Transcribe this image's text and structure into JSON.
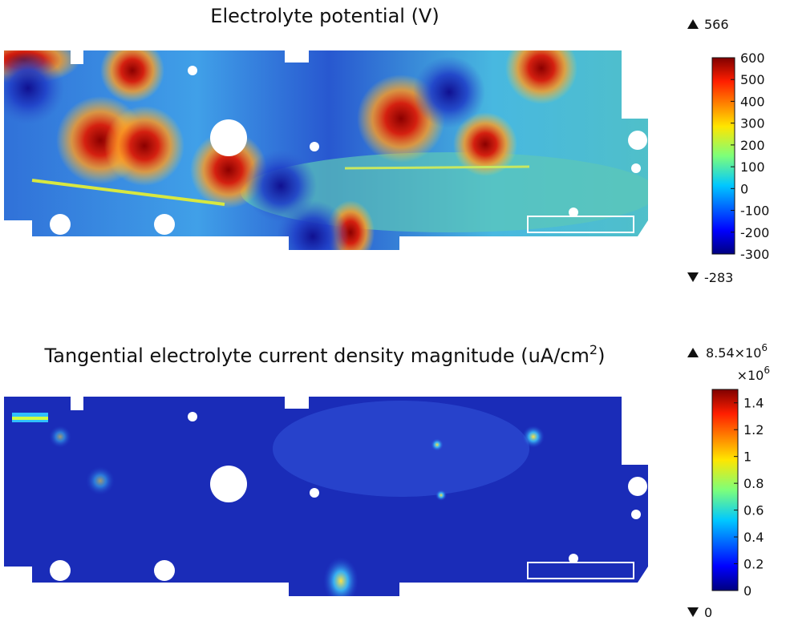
{
  "plots": [
    {
      "title": "Electrolyte potential (V)",
      "max": 566,
      "min": -283,
      "colorbar": {
        "lim": [
          -300,
          600
        ],
        "ticks": [
          600,
          500,
          400,
          300,
          200,
          100,
          0,
          -100,
          -200,
          -300
        ]
      }
    },
    {
      "title": "Tangential electrolyte current density magnitude (uA/cm",
      "title_superscript": "2",
      "title_end": ")",
      "max": {
        "value": 8540000,
        "label": "8.54×10",
        "exponent": "6"
      },
      "min": 0,
      "colorbar": {
        "lim": [
          0,
          1.5
        ],
        "ticks": [
          1.4,
          1.2,
          1,
          0.8,
          0.6,
          0.4,
          0.2,
          0
        ],
        "multiplier": "×10",
        "multiplier_exponent": "6"
      }
    }
  ]
}
